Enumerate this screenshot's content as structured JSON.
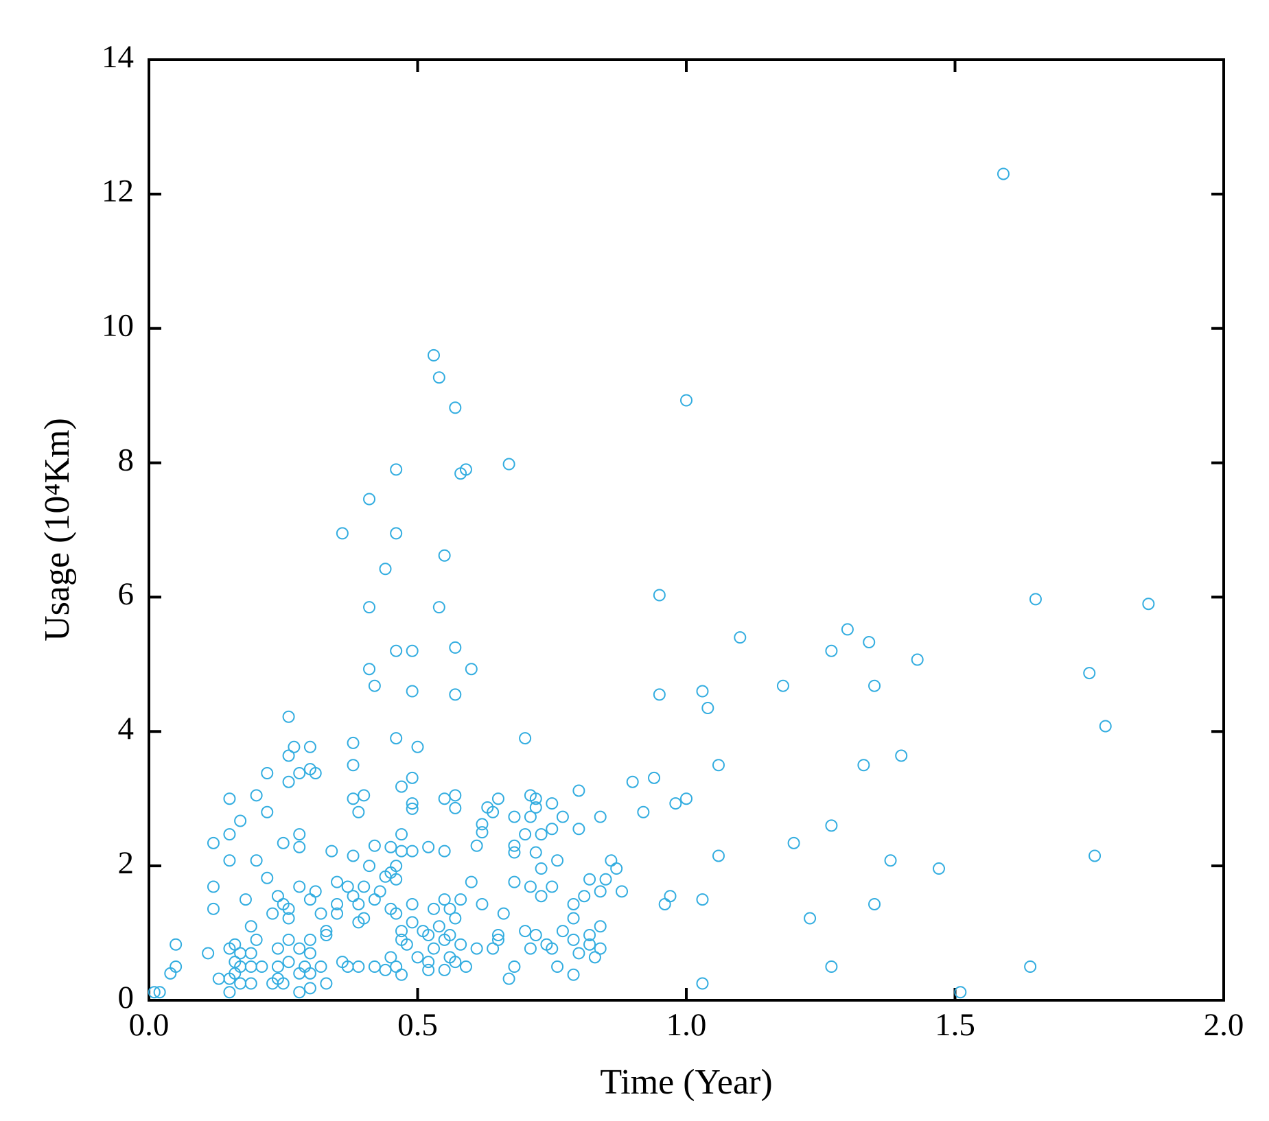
{
  "chart_data": {
    "type": "scatter",
    "xlabel": "Time (Year)",
    "ylabel": "Usage (10⁴Km)",
    "color": "#33ade0",
    "xlim": [
      0,
      2
    ],
    "xticks": [
      {
        "value": 0,
        "label": "0.0"
      },
      0.5,
      {
        "value": 1,
        "label": "1.0"
      },
      1.5,
      {
        "value": 2,
        "label": "2.0"
      }
    ],
    "ylim": [
      0,
      14
    ],
    "yticks": [
      0,
      2,
      4,
      6,
      8,
      10,
      12,
      14
    ],
    "x": [
      1.59,
      0.53,
      0.54,
      1.0,
      0.57,
      0.67,
      0.46,
      0.59,
      0.58,
      0.41,
      0.36,
      0.46,
      0.55,
      0.44,
      0.95,
      1.65,
      1.86,
      0.41,
      0.54,
      1.3,
      1.1,
      1.34,
      0.57,
      0.46,
      0.49,
      1.27,
      1.43,
      0.41,
      0.6,
      1.75,
      0.42,
      1.18,
      1.35,
      0.49,
      1.03,
      0.57,
      0.95,
      1.04,
      0.26,
      1.78,
      0.7,
      0.46,
      0.38,
      0.27,
      0.3,
      0.5,
      0.26,
      1.4,
      0.38,
      1.06,
      1.33,
      0.3,
      0.22,
      0.28,
      0.31,
      0.94,
      0.49,
      0.26,
      0.9,
      0.47,
      0.8,
      0.2,
      0.4,
      0.57,
      0.71,
      0.15,
      0.38,
      0.55,
      0.65,
      0.72,
      1.0,
      0.75,
      0.98,
      0.49,
      0.63,
      0.72,
      0.49,
      0.57,
      0.22,
      0.39,
      0.64,
      0.92,
      0.68,
      0.71,
      0.77,
      0.84,
      0.17,
      0.62,
      1.27,
      0.8,
      0.62,
      0.15,
      0.28,
      0.47,
      0.7,
      0.73,
      0.75,
      0.12,
      0.25,
      0.42,
      0.68,
      1.2,
      0.28,
      0.45,
      0.52,
      0.61,
      0.34,
      0.47,
      0.49,
      0.55,
      0.68,
      0.72,
      0.38,
      1.06,
      1.76,
      0.15,
      0.2,
      0.76,
      0.86,
      1.38,
      0.41,
      0.46,
      0.73,
      0.87,
      1.47,
      0.45,
      0.44,
      0.22,
      0.46,
      0.35,
      0.6,
      0.68,
      0.12,
      0.28,
      0.37,
      0.4,
      0.71,
      0.75,
      0.85,
      0.82,
      0.31,
      0.43,
      0.84,
      0.88,
      0.24,
      0.38,
      0.73,
      0.81,
      0.97,
      0.18,
      0.3,
      0.42,
      0.55,
      0.58,
      1.03,
      0.25,
      0.35,
      0.39,
      0.49,
      0.62,
      0.79,
      0.96,
      1.35,
      0.12,
      0.26,
      0.45,
      0.53,
      0.56,
      0.23,
      0.32,
      0.35,
      0.46,
      0.66,
      0.26,
      0.4,
      0.57,
      0.79,
      1.23,
      0.39,
      0.49,
      0.19,
      0.54,
      0.84,
      0.33,
      0.47,
      0.51,
      0.7,
      0.77,
      0.33,
      0.52,
      0.56,
      0.65,
      0.72,
      0.82,
      0.2,
      0.26,
      0.3,
      0.47,
      0.55,
      0.65,
      0.79,
      0.05,
      0.16,
      0.24,
      0.48,
      0.58,
      0.74,
      0.82,
      0.11,
      0.15,
      0.17,
      0.28,
      0.3,
      0.53,
      0.61,
      0.64,
      0.71,
      0.75,
      0.8,
      0.84,
      0.19,
      0.45,
      0.5,
      0.56,
      0.83,
      0.16,
      0.26,
      0.36,
      0.52,
      0.57,
      0.05,
      0.13,
      0.17,
      0.19,
      0.21,
      0.24,
      0.29,
      0.32,
      0.37,
      0.39,
      0.42,
      0.46,
      0.55,
      0.59,
      0.68,
      0.76,
      1.27,
      1.64,
      0.04,
      0.16,
      0.28,
      0.44,
      0.47,
      0.52,
      0.79,
      0.15,
      0.24,
      0.3,
      0.67,
      0.19,
      0.23,
      0.25,
      0.33,
      0.17,
      1.03,
      0.01,
      0.02,
      0.15,
      0.28,
      0.3,
      1.51
    ],
    "values": [
      12.3,
      9.6,
      9.27,
      8.93,
      8.82,
      7.98,
      7.9,
      7.9,
      7.84,
      7.46,
      6.95,
      6.95,
      6.62,
      6.42,
      6.03,
      5.97,
      5.9,
      5.85,
      5.85,
      5.52,
      5.4,
      5.33,
      5.25,
      5.2,
      5.2,
      5.2,
      5.07,
      4.93,
      4.93,
      4.87,
      4.68,
      4.68,
      4.68,
      4.6,
      4.6,
      4.55,
      4.55,
      4.35,
      4.22,
      4.08,
      3.9,
      3.9,
      3.83,
      3.77,
      3.77,
      3.77,
      3.64,
      3.64,
      3.5,
      3.5,
      3.5,
      3.44,
      3.38,
      3.38,
      3.38,
      3.31,
      3.31,
      3.25,
      3.25,
      3.18,
      3.12,
      3.05,
      3.05,
      3.05,
      3.05,
      3.0,
      3.0,
      3.0,
      3.0,
      3.0,
      3.0,
      2.93,
      2.93,
      2.93,
      2.87,
      2.87,
      2.85,
      2.86,
      2.8,
      2.8,
      2.8,
      2.8,
      2.73,
      2.73,
      2.73,
      2.73,
      2.67,
      2.62,
      2.6,
      2.55,
      2.5,
      2.47,
      2.47,
      2.47,
      2.47,
      2.47,
      2.55,
      2.34,
      2.34,
      2.3,
      2.3,
      2.34,
      2.28,
      2.28,
      2.28,
      2.3,
      2.22,
      2.22,
      2.22,
      2.22,
      2.2,
      2.2,
      2.15,
      2.15,
      2.15,
      2.08,
      2.08,
      2.08,
      2.08,
      2.08,
      2.0,
      2.0,
      1.96,
      1.96,
      1.96,
      1.9,
      1.84,
      1.82,
      1.8,
      1.76,
      1.76,
      1.76,
      1.69,
      1.69,
      1.69,
      1.69,
      1.69,
      1.69,
      1.8,
      1.8,
      1.62,
      1.62,
      1.62,
      1.62,
      1.55,
      1.55,
      1.55,
      1.55,
      1.55,
      1.5,
      1.5,
      1.5,
      1.5,
      1.5,
      1.5,
      1.43,
      1.43,
      1.43,
      1.43,
      1.43,
      1.43,
      1.43,
      1.43,
      1.36,
      1.36,
      1.36,
      1.36,
      1.36,
      1.29,
      1.29,
      1.29,
      1.29,
      1.29,
      1.22,
      1.22,
      1.22,
      1.22,
      1.22,
      1.16,
      1.16,
      1.1,
      1.1,
      1.1,
      1.03,
      1.03,
      1.03,
      1.03,
      1.03,
      0.97,
      0.97,
      0.97,
      0.97,
      0.97,
      0.97,
      0.9,
      0.9,
      0.9,
      0.9,
      0.9,
      0.9,
      0.9,
      0.83,
      0.83,
      0.77,
      0.83,
      0.83,
      0.83,
      0.83,
      0.7,
      0.77,
      0.7,
      0.77,
      0.7,
      0.77,
      0.77,
      0.77,
      0.77,
      0.77,
      0.7,
      0.77,
      0.7,
      0.64,
      0.64,
      0.64,
      0.64,
      0.57,
      0.57,
      0.57,
      0.57,
      0.57,
      0.5,
      0.32,
      0.5,
      0.5,
      0.5,
      0.5,
      0.5,
      0.5,
      0.5,
      0.5,
      0.5,
      0.5,
      0.45,
      0.5,
      0.5,
      0.5,
      0.5,
      0.5,
      0.4,
      0.4,
      0.4,
      0.45,
      0.38,
      0.45,
      0.38,
      0.32,
      0.32,
      0.4,
      0.32,
      0.25,
      0.25,
      0.25,
      0.25,
      0.25,
      0.25,
      0.12,
      0.12,
      0.12,
      0.12,
      0.18,
      0.12
    ]
  }
}
